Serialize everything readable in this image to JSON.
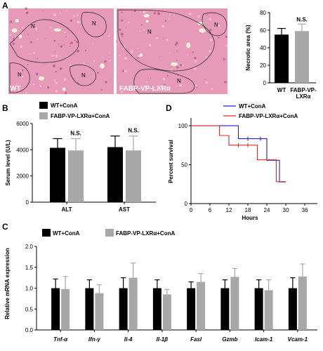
{
  "panels": {
    "A": "A",
    "B": "B",
    "C": "C",
    "D": "D"
  },
  "micrographs": {
    "left_label": "WT",
    "right_label": "FABP-VP-LXRα",
    "necrosis_marker": "N",
    "bg_color": "#e79ab7",
    "outline_color": "#333333"
  },
  "colors": {
    "wt": "#000000",
    "tg": "#a8a8a8",
    "wt_line": "#1f1fd6",
    "tg_line": "#e02828"
  },
  "chart_data": [
    {
      "id": "A",
      "type": "bar",
      "categories": [
        "WT",
        "FABP-VP-LXRα"
      ],
      "values": [
        55,
        59
      ],
      "errors": [
        7,
        8
      ],
      "ylabel": "Necrotic area (%)",
      "ylim": [
        0,
        80
      ],
      "yticks": [
        0,
        20,
        40,
        60,
        80
      ],
      "annotation": "N.S."
    },
    {
      "id": "B",
      "type": "bar",
      "categories": [
        "ALT",
        "AST"
      ],
      "series": [
        {
          "name": "WT+ConA",
          "values": [
            4150,
            4200
          ],
          "errors": [
            700,
            850
          ]
        },
        {
          "name": "FABP-VP-LXRα+ConA",
          "values": [
            3950,
            3950
          ],
          "errors": [
            900,
            1100
          ]
        }
      ],
      "ylabel": "Serum level (U/L)",
      "ylim": [
        0,
        6000
      ],
      "yticks": [
        0,
        2000,
        4000,
        6000
      ],
      "annotations": [
        "N.S.",
        "N.S."
      ]
    },
    {
      "id": "D",
      "type": "line",
      "step": true,
      "series": [
        {
          "name": "WT+ConA",
          "x": [
            0,
            15,
            15,
            24,
            24,
            28,
            28,
            30
          ],
          "y": [
            100,
            100,
            83.3,
            83.3,
            55.6,
            55.6,
            27.8,
            27.8
          ],
          "censor_x": [
            18,
            22
          ]
        },
        {
          "name": "FABP-VP-LXRα+ConA",
          "x": [
            0,
            9,
            9,
            12,
            12,
            21,
            21,
            27,
            27,
            30
          ],
          "y": [
            100,
            100,
            87.5,
            87.5,
            75,
            75,
            56.2,
            56.2,
            28.1,
            28.1
          ],
          "censor_x": [
            15,
            18
          ]
        }
      ],
      "xlabel": "Hours",
      "ylabel": "Percent survival",
      "xlim": [
        0,
        40
      ],
      "ylim": [
        0,
        110
      ],
      "xticks": [
        0,
        6,
        12,
        18,
        24,
        30,
        36
      ],
      "yticks": [
        0,
        50,
        100
      ]
    },
    {
      "id": "C",
      "type": "bar",
      "categories": [
        "Tnf-α",
        "Ifn-γ",
        "Il-4",
        "Il-1β",
        "Fasl",
        "Gzmb",
        "Icam-1",
        "Vcam-1"
      ],
      "series": [
        {
          "name": "WT+ConA",
          "values": [
            1.0,
            1.0,
            1.0,
            1.0,
            1.0,
            1.0,
            1.0,
            1.0
          ],
          "errors": [
            0.22,
            0.2,
            0.25,
            0.2,
            0.15,
            0.2,
            0.2,
            0.25
          ]
        },
        {
          "name": "FABP-VP-LXRα+ConA",
          "values": [
            0.98,
            0.88,
            1.25,
            0.85,
            1.15,
            1.27,
            0.95,
            1.28
          ],
          "errors": [
            0.3,
            0.2,
            0.35,
            0.12,
            0.2,
            0.2,
            0.25,
            0.3
          ]
        }
      ],
      "ylabel": "Relative mRNA expression",
      "ylim": [
        0,
        2.0
      ],
      "yticks": [
        0.0,
        0.5,
        1.0,
        1.5,
        2.0
      ]
    }
  ]
}
